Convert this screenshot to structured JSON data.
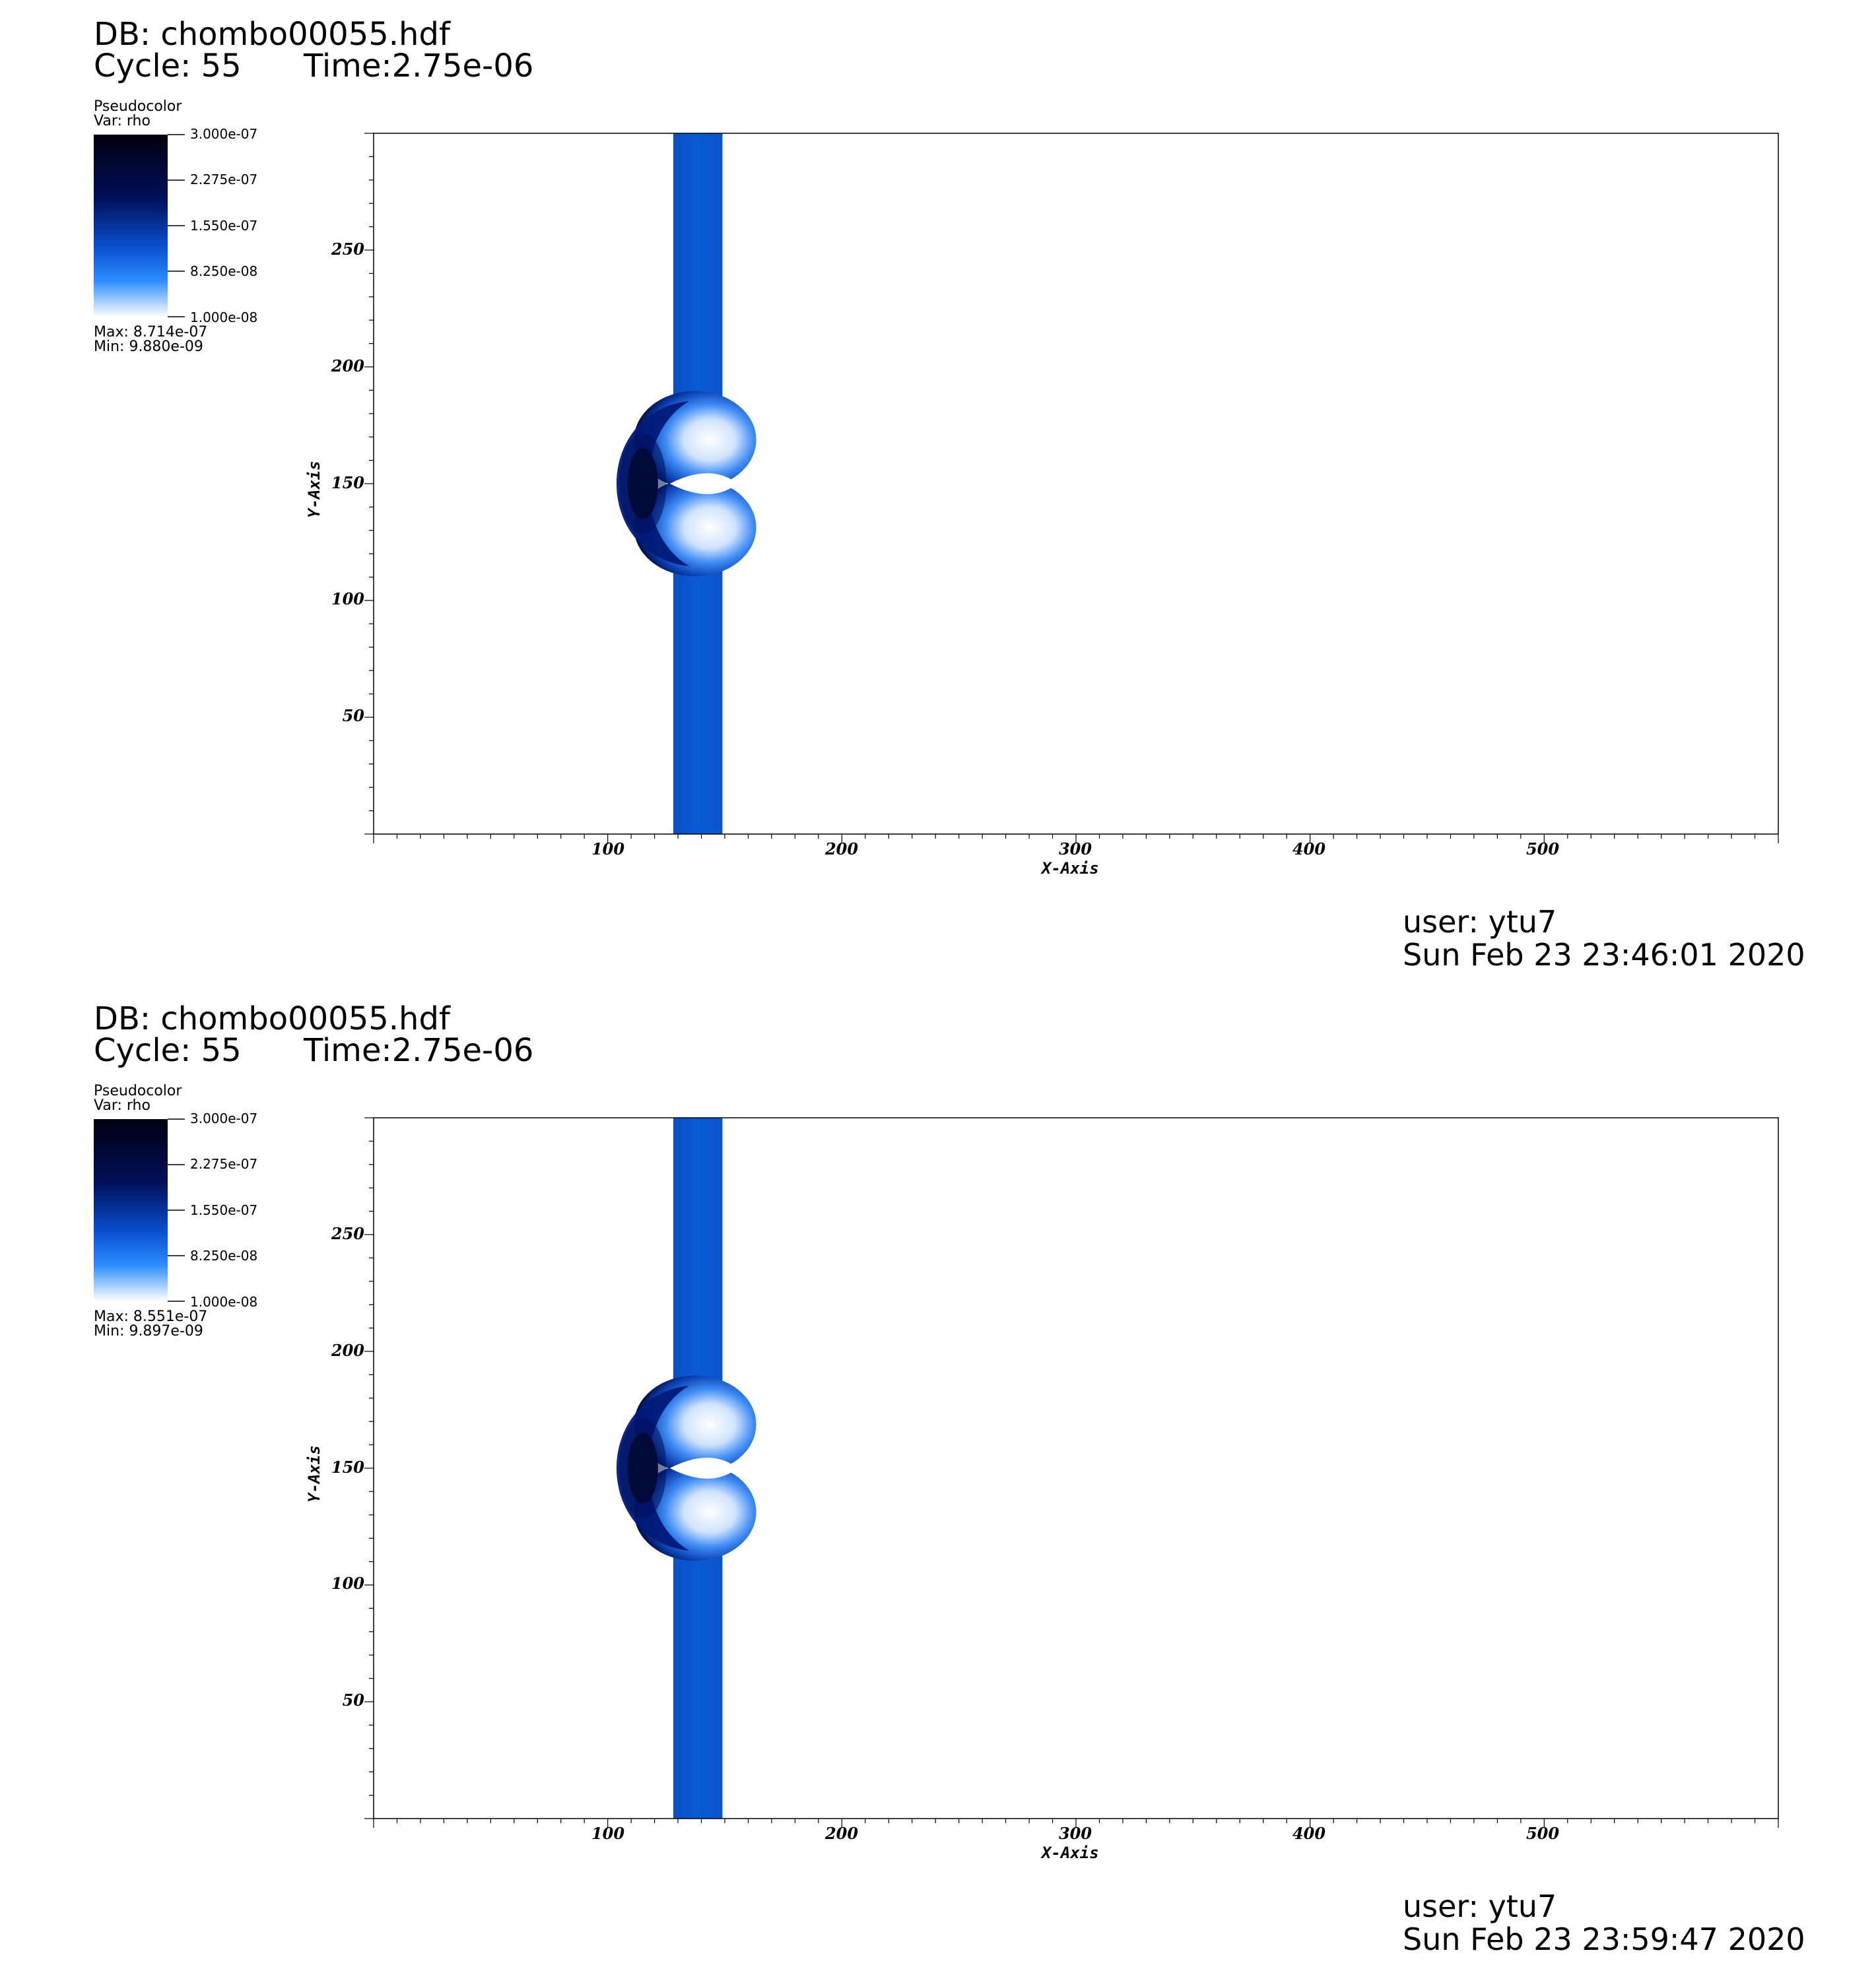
{
  "chart_data": [
    {
      "type": "heatmap",
      "db_label": "DB: chombo00055.hdf",
      "cycle_label": "Cycle: 55",
      "time_label": "Time:2.75e-06",
      "legend": {
        "plot_type": "Pseudocolor",
        "var": "Var: rho",
        "ticks": [
          "3.000e-07",
          "2.275e-07",
          "1.550e-07",
          "8.250e-08",
          "1.000e-08"
        ],
        "max": "Max:  8.714e-07",
        "min": "Min:  9.880e-09",
        "range": [
          1e-08,
          3e-07
        ]
      },
      "xlabel": "X-Axis",
      "ylabel": "Y-Axis",
      "xlim": [
        0,
        600
      ],
      "ylim": [
        0,
        300
      ],
      "xticks": [
        "100",
        "200",
        "300",
        "400",
        "500"
      ],
      "yticks": [
        "50",
        "100",
        "150",
        "200",
        "250"
      ],
      "features": {
        "band_x": [
          128,
          149
        ],
        "band_rho": 1e-07,
        "bubble_center": [
          133,
          150
        ],
        "bubble_outer_radius": 36,
        "core_rho": 8.714e-07
      },
      "footer_user": "user: ytu7",
      "footer_date": "Sun Feb 23 23:46:01 2020"
    },
    {
      "type": "heatmap",
      "db_label": "DB: chombo00055.hdf",
      "cycle_label": "Cycle: 55",
      "time_label": "Time:2.75e-06",
      "legend": {
        "plot_type": "Pseudocolor",
        "var": "Var: rho",
        "ticks": [
          "3.000e-07",
          "2.275e-07",
          "1.550e-07",
          "8.250e-08",
          "1.000e-08"
        ],
        "max": "Max:  8.551e-07",
        "min": "Min:  9.897e-09",
        "range": [
          1e-08,
          3e-07
        ]
      },
      "xlabel": "X-Axis",
      "ylabel": "Y-Axis",
      "xlim": [
        0,
        600
      ],
      "ylim": [
        0,
        300
      ],
      "xticks": [
        "100",
        "200",
        "300",
        "400",
        "500"
      ],
      "yticks": [
        "50",
        "100",
        "150",
        "200",
        "250"
      ],
      "features": {
        "band_x": [
          128,
          149
        ],
        "band_rho": 1e-07,
        "bubble_center": [
          133,
          150
        ],
        "bubble_outer_radius": 36,
        "core_rho": 8.551e-07
      },
      "footer_user": "user: ytu7",
      "footer_date": "Sun Feb 23 23:59:47 2020"
    }
  ],
  "colors": {
    "band": "#0a5ad6",
    "dark": "#000010",
    "navy": "#00105a",
    "light": "#ffffff"
  }
}
